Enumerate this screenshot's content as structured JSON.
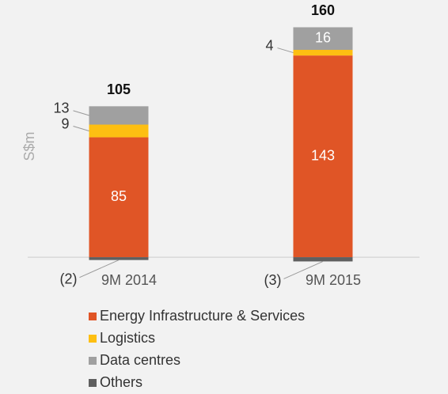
{
  "chart_data": {
    "type": "stacked_bar",
    "ylabel": "S$m",
    "categories": [
      "9M 2014",
      "9M 2015"
    ],
    "series": [
      {
        "name": "Energy Infrastructure & Services",
        "color": "#e05526",
        "values": [
          85,
          143
        ]
      },
      {
        "name": "Logistics",
        "color": "#fdbf12",
        "values": [
          9,
          4
        ]
      },
      {
        "name": "Data centres",
        "color": "#a0a0a0",
        "values": [
          13,
          16
        ]
      },
      {
        "name": "Others",
        "color": "#5f5f5f",
        "values": [
          -2,
          -3
        ],
        "value_labels": [
          "(2)",
          "(3)"
        ]
      }
    ],
    "totals": [
      105,
      160
    ],
    "ylim": [
      -5,
      170
    ],
    "legend": "bottom"
  }
}
